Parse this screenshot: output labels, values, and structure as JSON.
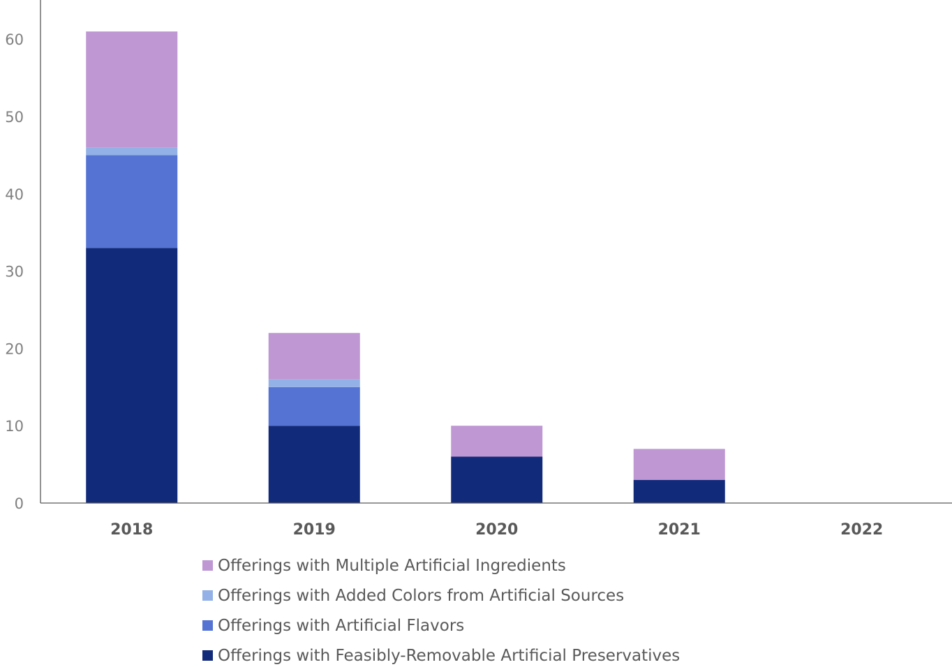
{
  "chart_data": {
    "type": "bar",
    "stacked": true,
    "categories": [
      "2018",
      "2019",
      "2020",
      "2021",
      "2022"
    ],
    "series": [
      {
        "name": "Offerings with Feasibly-Removable Artificial Preservatives",
        "color": "#122a7a",
        "values": [
          33,
          10,
          6,
          3,
          0
        ]
      },
      {
        "name": "Offerings with Artificial Flavors",
        "color": "#5473d3",
        "values": [
          12,
          5,
          0,
          0,
          0
        ]
      },
      {
        "name": "Offerings with Added Colors from Artificial Sources",
        "color": "#93b1e6",
        "values": [
          1,
          1,
          0,
          0,
          0
        ]
      },
      {
        "name": "Offerings with Multiple Artificial Ingredients",
        "color": "#be97d3",
        "values": [
          15,
          6,
          4,
          4,
          0
        ]
      }
    ],
    "yticks": [
      "0",
      "10",
      "20",
      "30",
      "40",
      "50",
      "60"
    ],
    "ylim": [
      0,
      70
    ],
    "grid": false,
    "legend_position": "bottom",
    "legend_order": [
      "Offerings with Multiple Artificial Ingredients",
      "Offerings with Added Colors from Artificial Sources",
      "Offerings with Artificial Flavors",
      "Offerings with Feasibly-Removable Artificial Preservatives"
    ],
    "axis_color": "#595959"
  }
}
